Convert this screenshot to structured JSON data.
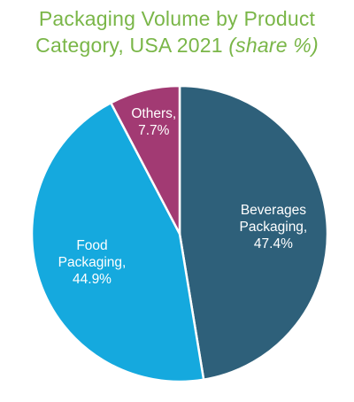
{
  "title": {
    "line1": "Packaging Volume by Product",
    "line2_main": "Category, USA 2021",
    "line2_italic": "(share %)"
  },
  "chart_data": {
    "type": "pie",
    "title": "Packaging Volume by Product Category, USA 2021 (share %)",
    "slices": [
      {
        "label": "Beverages Packaging",
        "value": 47.4,
        "color": "#2e607a",
        "label_lines": [
          "Beverages",
          "Packaging,",
          "47.4%"
        ]
      },
      {
        "label": "Food Packaging",
        "value": 44.9,
        "color": "#15a9de",
        "label_lines": [
          "Food",
          "Packaging,",
          "44.9%"
        ]
      },
      {
        "label": "Others",
        "value": 7.7,
        "color": "#a23a73",
        "label_lines": [
          "Others,",
          "7.7%"
        ]
      }
    ]
  }
}
